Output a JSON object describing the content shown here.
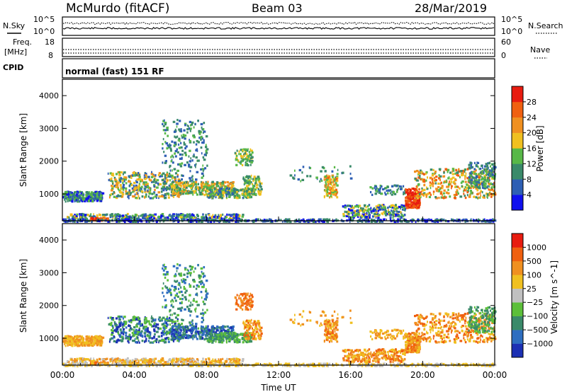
{
  "header": {
    "station": "McMurdo (fitACF)",
    "beam": "Beam 03",
    "date": "28/Mar/2019"
  },
  "noise_panel": {
    "left_label": "N.Sky",
    "right_label": "N.Search",
    "left_ticks": [
      "10^5",
      "10^0"
    ],
    "right_ticks": [
      "10^5",
      "10^0"
    ]
  },
  "freq_panel": {
    "left_label_1": "Freq.",
    "left_label_2": "[MHz]",
    "right_label": "Nave",
    "left_ticks": [
      "18",
      "8"
    ],
    "right_ticks": [
      "60",
      "0"
    ]
  },
  "cpid": {
    "label": "CPID",
    "value": "normal (fast) 151 RF"
  },
  "chart_data": [
    {
      "type": "heatmap",
      "ylabel": "Slant Range [km]",
      "ylim": [
        180,
        4500
      ],
      "yticks": [
        "1000",
        "2000",
        "3000",
        "4000"
      ],
      "colorbar_label": "Power [dB]",
      "colorbar_ticks": [
        "4",
        "8",
        "12",
        "16",
        "20",
        "24",
        "28"
      ],
      "colorbar_colors": [
        "#1010ee",
        "#2e5fb4",
        "#3a8a6a",
        "#58b848",
        "#f0c020",
        "#f09020",
        "#f06010",
        "#e81c10"
      ]
    },
    {
      "type": "heatmap",
      "ylabel": "Slant Range [km]",
      "ylim": [
        180,
        4500
      ],
      "yticks": [
        "1000",
        "2000",
        "3000",
        "4000"
      ],
      "colorbar_label": "Velocity [m s^-1]",
      "colorbar_ticks": [
        "1000",
        "500",
        "100",
        "25",
        "−25",
        "−100",
        "−500",
        "−1000"
      ],
      "colorbar_colors": [
        "#1c30b4",
        "#2e6ec0",
        "#3a8a6a",
        "#5cbf3a",
        "#c0c0c0",
        "#f0c020",
        "#f09020",
        "#f06010",
        "#e81c10"
      ]
    }
  ],
  "xaxis": {
    "label": "Time UT",
    "ticks": [
      "00:00",
      "04:00",
      "08:00",
      "12:00",
      "16:00",
      "20:00",
      "00:00"
    ]
  }
}
